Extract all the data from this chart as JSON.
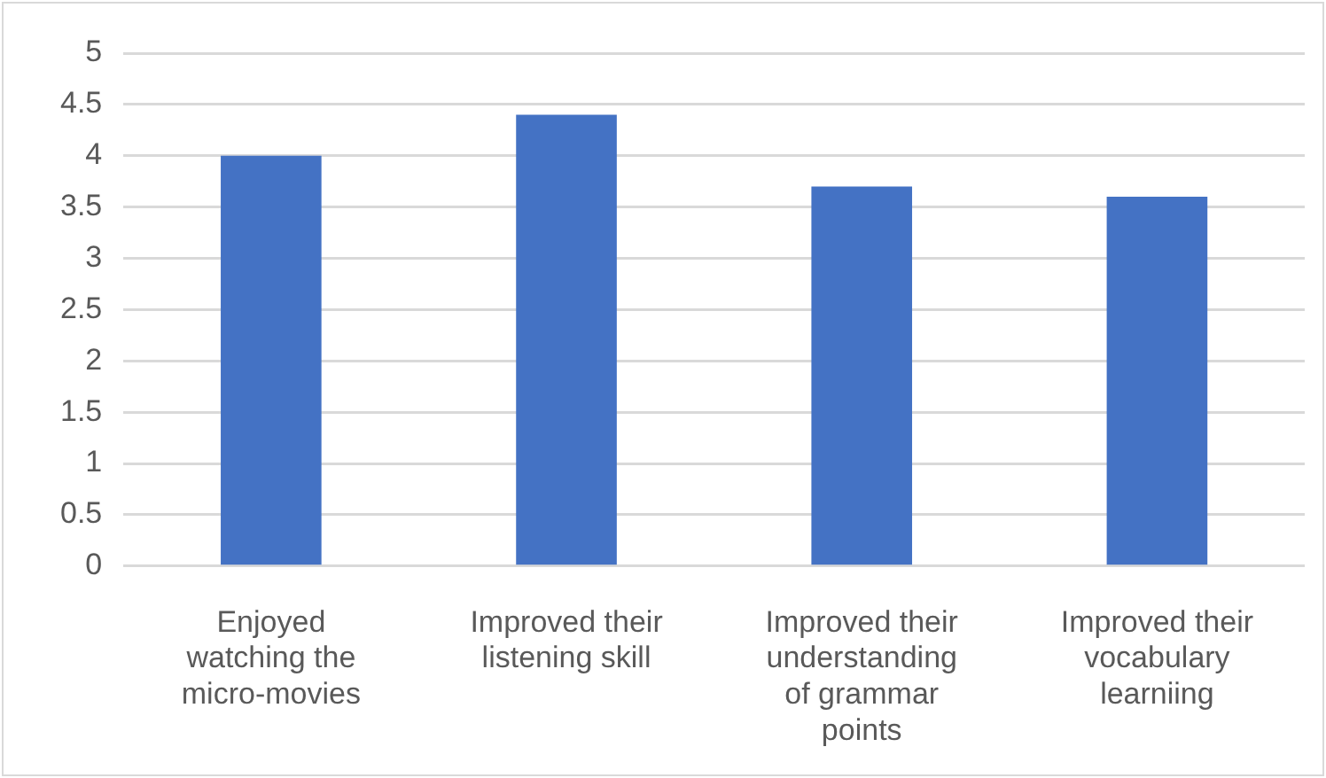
{
  "chart_data": {
    "type": "bar",
    "categories": [
      "Enjoyed watching the micro-movies",
      "Improved their listening skill",
      "Improved their understanding of grammar points",
      "Improved their vocabulary learniing"
    ],
    "values": [
      4,
      4.4,
      3.7,
      3.6
    ],
    "color": "#4472c4",
    "ylim": [
      0,
      5
    ],
    "yticks": [
      0,
      0.5,
      1,
      1.5,
      2,
      2.5,
      3,
      3.5,
      4,
      4.5,
      5
    ],
    "grid": "y",
    "legend": false
  }
}
